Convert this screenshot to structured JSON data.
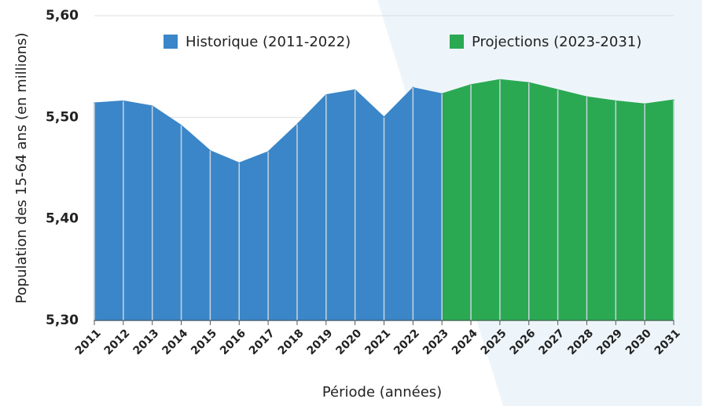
{
  "chart_data": {
    "type": "area",
    "x": [
      2011,
      2012,
      2013,
      2014,
      2015,
      2016,
      2017,
      2018,
      2019,
      2020,
      2021,
      2022,
      2023,
      2024,
      2025,
      2026,
      2027,
      2028,
      2029,
      2030,
      2031
    ],
    "series": [
      {
        "name": "Historique (2011-2022)",
        "color": "#3a86c8",
        "values": [
          5.514,
          5.516,
          5.511,
          5.492,
          5.467,
          5.455,
          5.466,
          5.493,
          5.522,
          5.527,
          5.5,
          5.529,
          null,
          null,
          null,
          null,
          null,
          null,
          null,
          null,
          null
        ]
      },
      {
        "name": "Projections (2023-2031)",
        "color": "#2aa952",
        "values": [
          null,
          null,
          null,
          null,
          null,
          null,
          null,
          null,
          null,
          null,
          null,
          null,
          5.523,
          5.532,
          5.537,
          5.534,
          5.527,
          5.52,
          5.516,
          5.513,
          5.517
        ]
      }
    ],
    "xlabel": "Période (années)",
    "ylabel": "Population des 15-64 ans (en millions)",
    "xlim": [
      2011,
      2031
    ],
    "xticks": [
      2011,
      2012,
      2013,
      2014,
      2015,
      2016,
      2017,
      2018,
      2019,
      2020,
      2021,
      2022,
      2023,
      2024,
      2025,
      2026,
      2027,
      2028,
      2029,
      2030,
      2031
    ],
    "ylim": [
      5.3,
      5.6
    ],
    "yticks": [
      {
        "value": 5.3,
        "label": "5,30"
      },
      {
        "value": 5.4,
        "label": "5,40"
      },
      {
        "value": 5.5,
        "label": "5,50"
      },
      {
        "value": 5.6,
        "label": "5,60"
      }
    ],
    "grid": true,
    "legend": "top"
  }
}
